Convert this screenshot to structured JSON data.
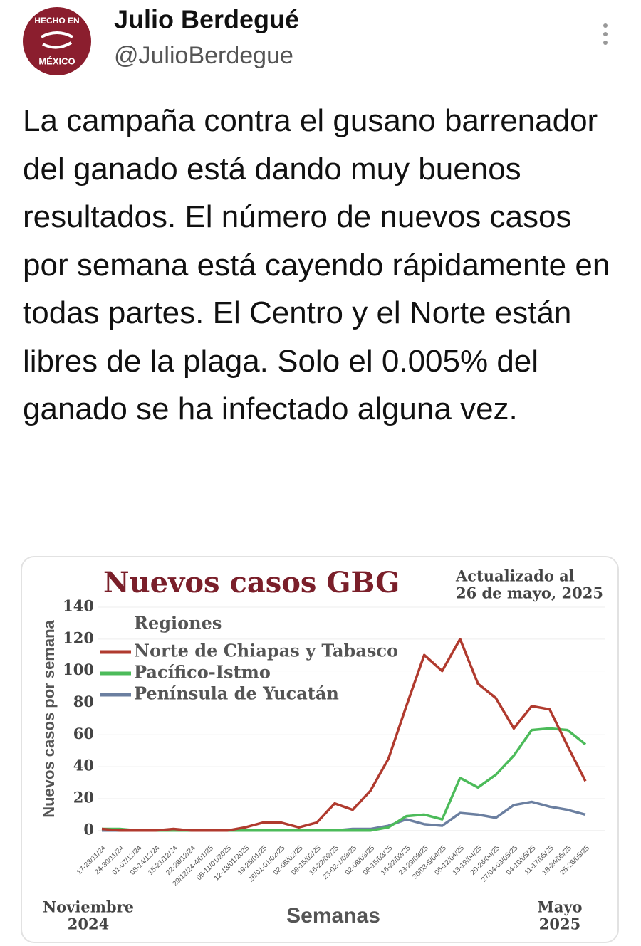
{
  "tweet": {
    "avatar": [
      "HECHO EN",
      "MÉXICO"
    ],
    "name": "Julio Berdegué",
    "handle": "@JulioBerdegue",
    "text": "La campaña contra el gusano barrenador del  ganado está dando muy buenos resultados. El número de nuevos casos por semana está cayendo rápidamente en todas partes. El Centro y el Norte están libres de la plaga. Solo el 0.005% del ganado se ha infectado alguna vez."
  },
  "chart_data": {
    "type": "line",
    "title": "Nuevos casos GBG",
    "subtitle": [
      "Actualizado al",
      "26 de mayo, 2025"
    ],
    "y_label": "Nuevos casos por semana",
    "x_label": "Semanas",
    "legend_title": "Regiones",
    "annotations": [
      [
        "Noviembre",
        "2024"
      ],
      [
        "Mayo",
        "2025"
      ]
    ],
    "categories": [
      "17-23/11/24",
      "24-30/11/24",
      "01-07/12/24",
      "08-14/12/24",
      "15-21/12/24",
      "22-28/12/24",
      "29/12/24-4/01/25",
      "05-11/01/2025",
      "12-18/01/2025",
      "19-25/01/25",
      "26/01-01/02/25",
      "02-08/02/25",
      "09-15/02/25",
      "16-22/02/25",
      "23-02-1/03/25",
      "02-08/03/25",
      "09-15/03/25",
      "16-22/03/25",
      "23-29/03/25",
      "30/03-5/04/25",
      "06-12/04/25",
      "13-19/04/25",
      "20-26/04/25",
      "27/04-03/05/25",
      "04-10/05/25",
      "11-17/05/25",
      "18-24/05/25",
      "25-26/05/25"
    ],
    "series": [
      {
        "name": "Norte de Chiapas y Tabasco",
        "color": "#b03a2e",
        "values": [
          1,
          0,
          0,
          0,
          1,
          0,
          0,
          0,
          2,
          5,
          5,
          2,
          5,
          17,
          13,
          25,
          45,
          78,
          110,
          100,
          120,
          92,
          83,
          64,
          78,
          76,
          53,
          31
        ]
      },
      {
        "name": "Pacífico-Istmo",
        "color": "#4cbb5a",
        "values": [
          1,
          1,
          0,
          0,
          0,
          0,
          0,
          0,
          0,
          0,
          0,
          0,
          0,
          0,
          0,
          0,
          2,
          9,
          10,
          7,
          33,
          27,
          35,
          47,
          63,
          64,
          63,
          54
        ]
      },
      {
        "name": "Península de Yucatán",
        "color": "#6b7fa0",
        "values": [
          0,
          0,
          0,
          0,
          0,
          0,
          0,
          0,
          0,
          0,
          0,
          0,
          0,
          0,
          1,
          1,
          3,
          7,
          4,
          3,
          11,
          10,
          8,
          16,
          18,
          15,
          13,
          10
        ]
      }
    ],
    "ylim": [
      -5,
      140
    ],
    "yticks": [
      0,
      20,
      40,
      60,
      80,
      100,
      120,
      140
    ],
    "grid": true
  }
}
